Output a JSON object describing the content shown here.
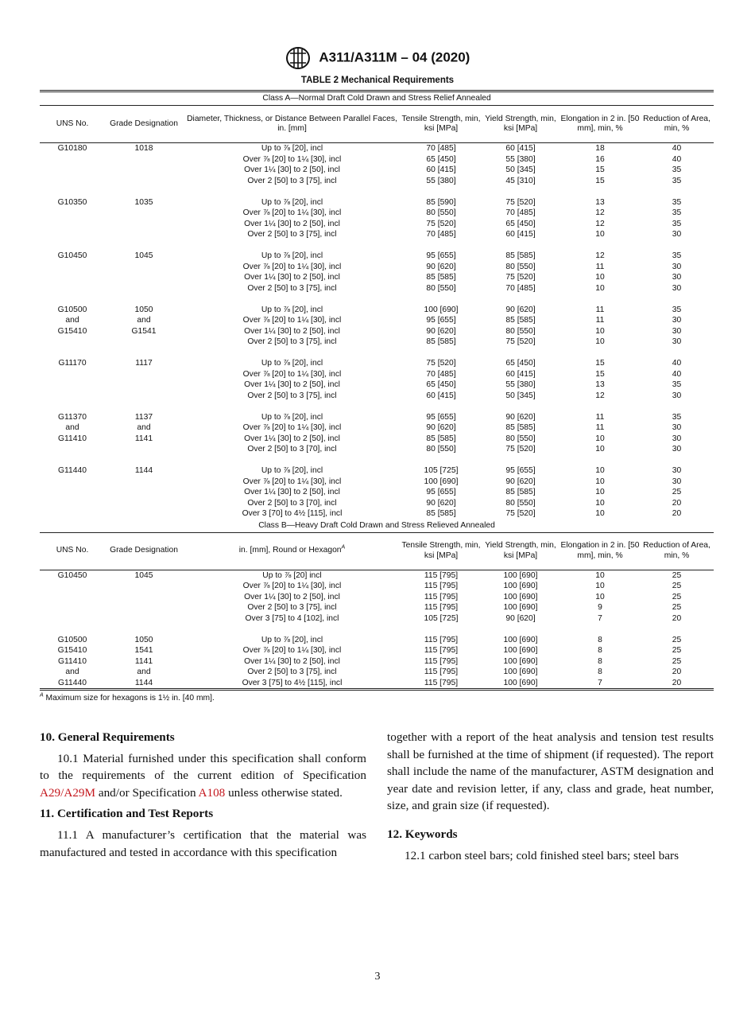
{
  "header": {
    "designation": "A311/A311M – 04 (2020)",
    "logo_text": "ASTM"
  },
  "table": {
    "title": "TABLE 2 Mechanical Requirements",
    "class_a": {
      "heading": "Class A—Normal Draft Cold Drawn and Stress Relief Annealed",
      "columns": [
        "UNS No.",
        "Grade Designation",
        "Diameter, Thickness, or Distance Between Parallel Faces, in. [mm]",
        "Tensile Strength, min, ksi [MPa]",
        "Yield Strength, min, ksi [MPa]",
        "Elongation in 2 in. [50 mm], min, %",
        "Reduction of Area, min, %"
      ],
      "groups": [
        {
          "uns": [
            "G10180"
          ],
          "grade": [
            "1018"
          ],
          "rows": [
            [
              "Up to ⅞ [20], incl",
              "70 [485]",
              "60 [415]",
              "18",
              "40"
            ],
            [
              "Over ⅞ [20] to 1¼ [30], incl",
              "65 [450]",
              "55 [380]",
              "16",
              "40"
            ],
            [
              "Over 1¼ [30] to 2 [50], incl",
              "60 [415]",
              "50 [345]",
              "15",
              "35"
            ],
            [
              "Over 2 [50] to 3 [75], incl",
              "55 [380]",
              "45 [310]",
              "15",
              "35"
            ]
          ]
        },
        {
          "uns": [
            "G10350"
          ],
          "grade": [
            "1035"
          ],
          "rows": [
            [
              "Up to ⅞ [20], incl",
              "85 [590]",
              "75 [520]",
              "13",
              "35"
            ],
            [
              "Over ⅞ [20] to 1¼ [30], incl",
              "80 [550]",
              "70 [485]",
              "12",
              "35"
            ],
            [
              "Over 1¼ [30] to 2 [50], incl",
              "75 [520]",
              "65 [450]",
              "12",
              "35"
            ],
            [
              "Over 2 [50] to 3 [75], incl",
              "70 [485]",
              "60 [415]",
              "10",
              "30"
            ]
          ]
        },
        {
          "uns": [
            "G10450"
          ],
          "grade": [
            "1045"
          ],
          "rows": [
            [
              "Up to ⅞ [20], incl",
              "95 [655]",
              "85 [585]",
              "12",
              "35"
            ],
            [
              "Over ⅞ [20] to 1¼ [30], incl",
              "90 [620]",
              "80 [550]",
              "11",
              "30"
            ],
            [
              "Over 1¼ [30] to 2 [50], incl",
              "85 [585]",
              "75 [520]",
              "10",
              "30"
            ],
            [
              "Over 2 [50] to 3 [75], incl",
              "80 [550]",
              "70 [485]",
              "10",
              "30"
            ]
          ]
        },
        {
          "uns": [
            "G10500",
            "and",
            "G15410"
          ],
          "grade": [
            "1050",
            "and",
            "G1541"
          ],
          "rows": [
            [
              "Up to ⅞ [20], incl",
              "100 [690]",
              "90 [620]",
              "11",
              "35"
            ],
            [
              "Over ⅞ [20] to 1¼ [30], incl",
              "95 [655]",
              "85 [585]",
              "11",
              "30"
            ],
            [
              "Over 1¼ [30] to 2 [50], incl",
              "90 [620]",
              "80 [550]",
              "10",
              "30"
            ],
            [
              "Over 2 [50] to 3 [75], incl",
              "85 [585]",
              "75 [520]",
              "10",
              "30"
            ]
          ]
        },
        {
          "uns": [
            "G11170"
          ],
          "grade": [
            "1117"
          ],
          "rows": [
            [
              "Up to ⅞ [20], incl",
              "75 [520]",
              "65 [450]",
              "15",
              "40"
            ],
            [
              "Over ⅞ [20] to 1¼ [30], incl",
              "70 [485]",
              "60 [415]",
              "15",
              "40"
            ],
            [
              "Over 1¼ [30] to 2 [50], incl",
              "65 [450]",
              "55 [380]",
              "13",
              "35"
            ],
            [
              "Over 2 [50] to 3 [75], incl",
              "60 [415]",
              "50 [345]",
              "12",
              "30"
            ]
          ]
        },
        {
          "uns": [
            "G11370",
            "and",
            "G11410"
          ],
          "grade": [
            "1137",
            "and",
            "1141"
          ],
          "rows": [
            [
              "Up to ⅞ [20], incl",
              "95 [655]",
              "90 [620]",
              "11",
              "35"
            ],
            [
              "Over ⅞ [20] to 1¼ [30], incl",
              "90 [620]",
              "85 [585]",
              "11",
              "30"
            ],
            [
              "Over 1¼ [30] to 2 [50], incl",
              "85 [585]",
              "80 [550]",
              "10",
              "30"
            ],
            [
              "Over 2 [50] to 3 [70], incl",
              "80 [550]",
              "75 [520]",
              "10",
              "30"
            ]
          ]
        },
        {
          "uns": [
            "G11440"
          ],
          "grade": [
            "1144"
          ],
          "rows": [
            [
              "Up to ⅞ [20], incl",
              "105 [725]",
              "95 [655]",
              "10",
              "30"
            ],
            [
              "Over ⅞ [20] to 1¼ [30], incl",
              "100 [690]",
              "90 [620]",
              "10",
              "30"
            ],
            [
              "Over 1¼ [30] to 2 [50], incl",
              "95 [655]",
              "85 [585]",
              "10",
              "25"
            ],
            [
              "Over 2 [50] to 3 [70], incl",
              "90 [620]",
              "80 [550]",
              "10",
              "20"
            ],
            [
              "Over 3 [70] to 4½ [115], incl",
              "85 [585]",
              "75 [520]",
              "10",
              "20"
            ]
          ]
        }
      ]
    },
    "class_b": {
      "heading": "Class B—Heavy Draft Cold Drawn and Stress Relieved Annealed",
      "columns": [
        "UNS No.",
        "Grade Designation",
        "in. [mm], Round or Hexagon",
        "Tensile Strength, min, ksi [MPa]",
        "Yield Strength, min, ksi [MPa]",
        "Elongation in 2 in. [50 mm], min, %",
        "Reduction of Area, min, %"
      ],
      "size_footnote_mark": "A",
      "groups": [
        {
          "uns": [
            "G10450"
          ],
          "grade": [
            "1045"
          ],
          "rows": [
            [
              "Up to ⅞ [20] incl",
              "115 [795]",
              "100 [690]",
              "10",
              "25"
            ],
            [
              "Over ⅞ [20] to 1¼ [30], incl",
              "115 [795]",
              "100 [690]",
              "10",
              "25"
            ],
            [
              "Over 1¼ [30] to 2 [50], incl",
              "115 [795]",
              "100 [690]",
              "10",
              "25"
            ],
            [
              "Over 2 [50] to 3 [75], incl",
              "115 [795]",
              "100 [690]",
              "9",
              "25"
            ],
            [
              "Over 3 [75] to 4 [102], incl",
              "105 [725]",
              "90 [620]",
              "7",
              "20"
            ]
          ]
        },
        {
          "uns": [
            "G10500",
            "G15410",
            "G11410",
            "and",
            "G11440"
          ],
          "grade": [
            "1050",
            "1541",
            "1141",
            "and",
            "1144"
          ],
          "rows": [
            [
              "Up to ⅞ [20], incl",
              "115 [795]",
              "100 [690]",
              "8",
              "25"
            ],
            [
              "Over ⅞ [20] to 1¼ [30], incl",
              "115 [795]",
              "100 [690]",
              "8",
              "25"
            ],
            [
              "Over 1¼ [30] to 2 [50], incl",
              "115 [795]",
              "100 [690]",
              "8",
              "25"
            ],
            [
              "Over 2 [50] to 3 [75], incl",
              "115 [795]",
              "100 [690]",
              "8",
              "20"
            ],
            [
              "Over 3 [75] to 4½ [115], incl",
              "115 [795]",
              "100 [690]",
              "7",
              "20"
            ]
          ]
        }
      ]
    },
    "footnote_mark": "A",
    "footnote": "Maximum size for hexagons is 1½ in. [40 mm]."
  },
  "sections": {
    "s10_heading": "10. General Requirements",
    "s10_1_a": "10.1 Material furnished under this specification shall conform to the requirements of the current edition of Specification ",
    "s10_1_link1": "A29/A29M",
    "s10_1_b": " and/or Specification ",
    "s10_1_link2": "A108",
    "s10_1_c": " unless otherwise stated.",
    "s11_heading": "11. Certification and Test Reports",
    "s11_1": "11.1 A manufacturer’s certification that the material was manufactured and tested in accordance with this specification together with a report of the heat analysis and tension test results shall be furnished at the time of shipment (if requested). The report shall include the name of the manufacturer, ASTM designation and year date and revision letter, if any, class and grade, heat number, size, and grain size (if requested).",
    "s11_1_left": "11.1 A manufacturer’s certification that the material was manufactured and tested in accordance with this specification",
    "s11_1_right": "together with a report of the heat analysis and tension test results shall be furnished at the time of shipment (if requested). The report shall include the name of the manufacturer, ASTM designation and year date and revision letter, if any, class and grade, heat number, size, and grain size (if requested).",
    "s12_heading": "12. Keywords",
    "s12_1": "12.1 carbon steel bars; cold finished steel bars; steel bars"
  },
  "page_number": "3",
  "colors": {
    "link": "#c4161c"
  }
}
